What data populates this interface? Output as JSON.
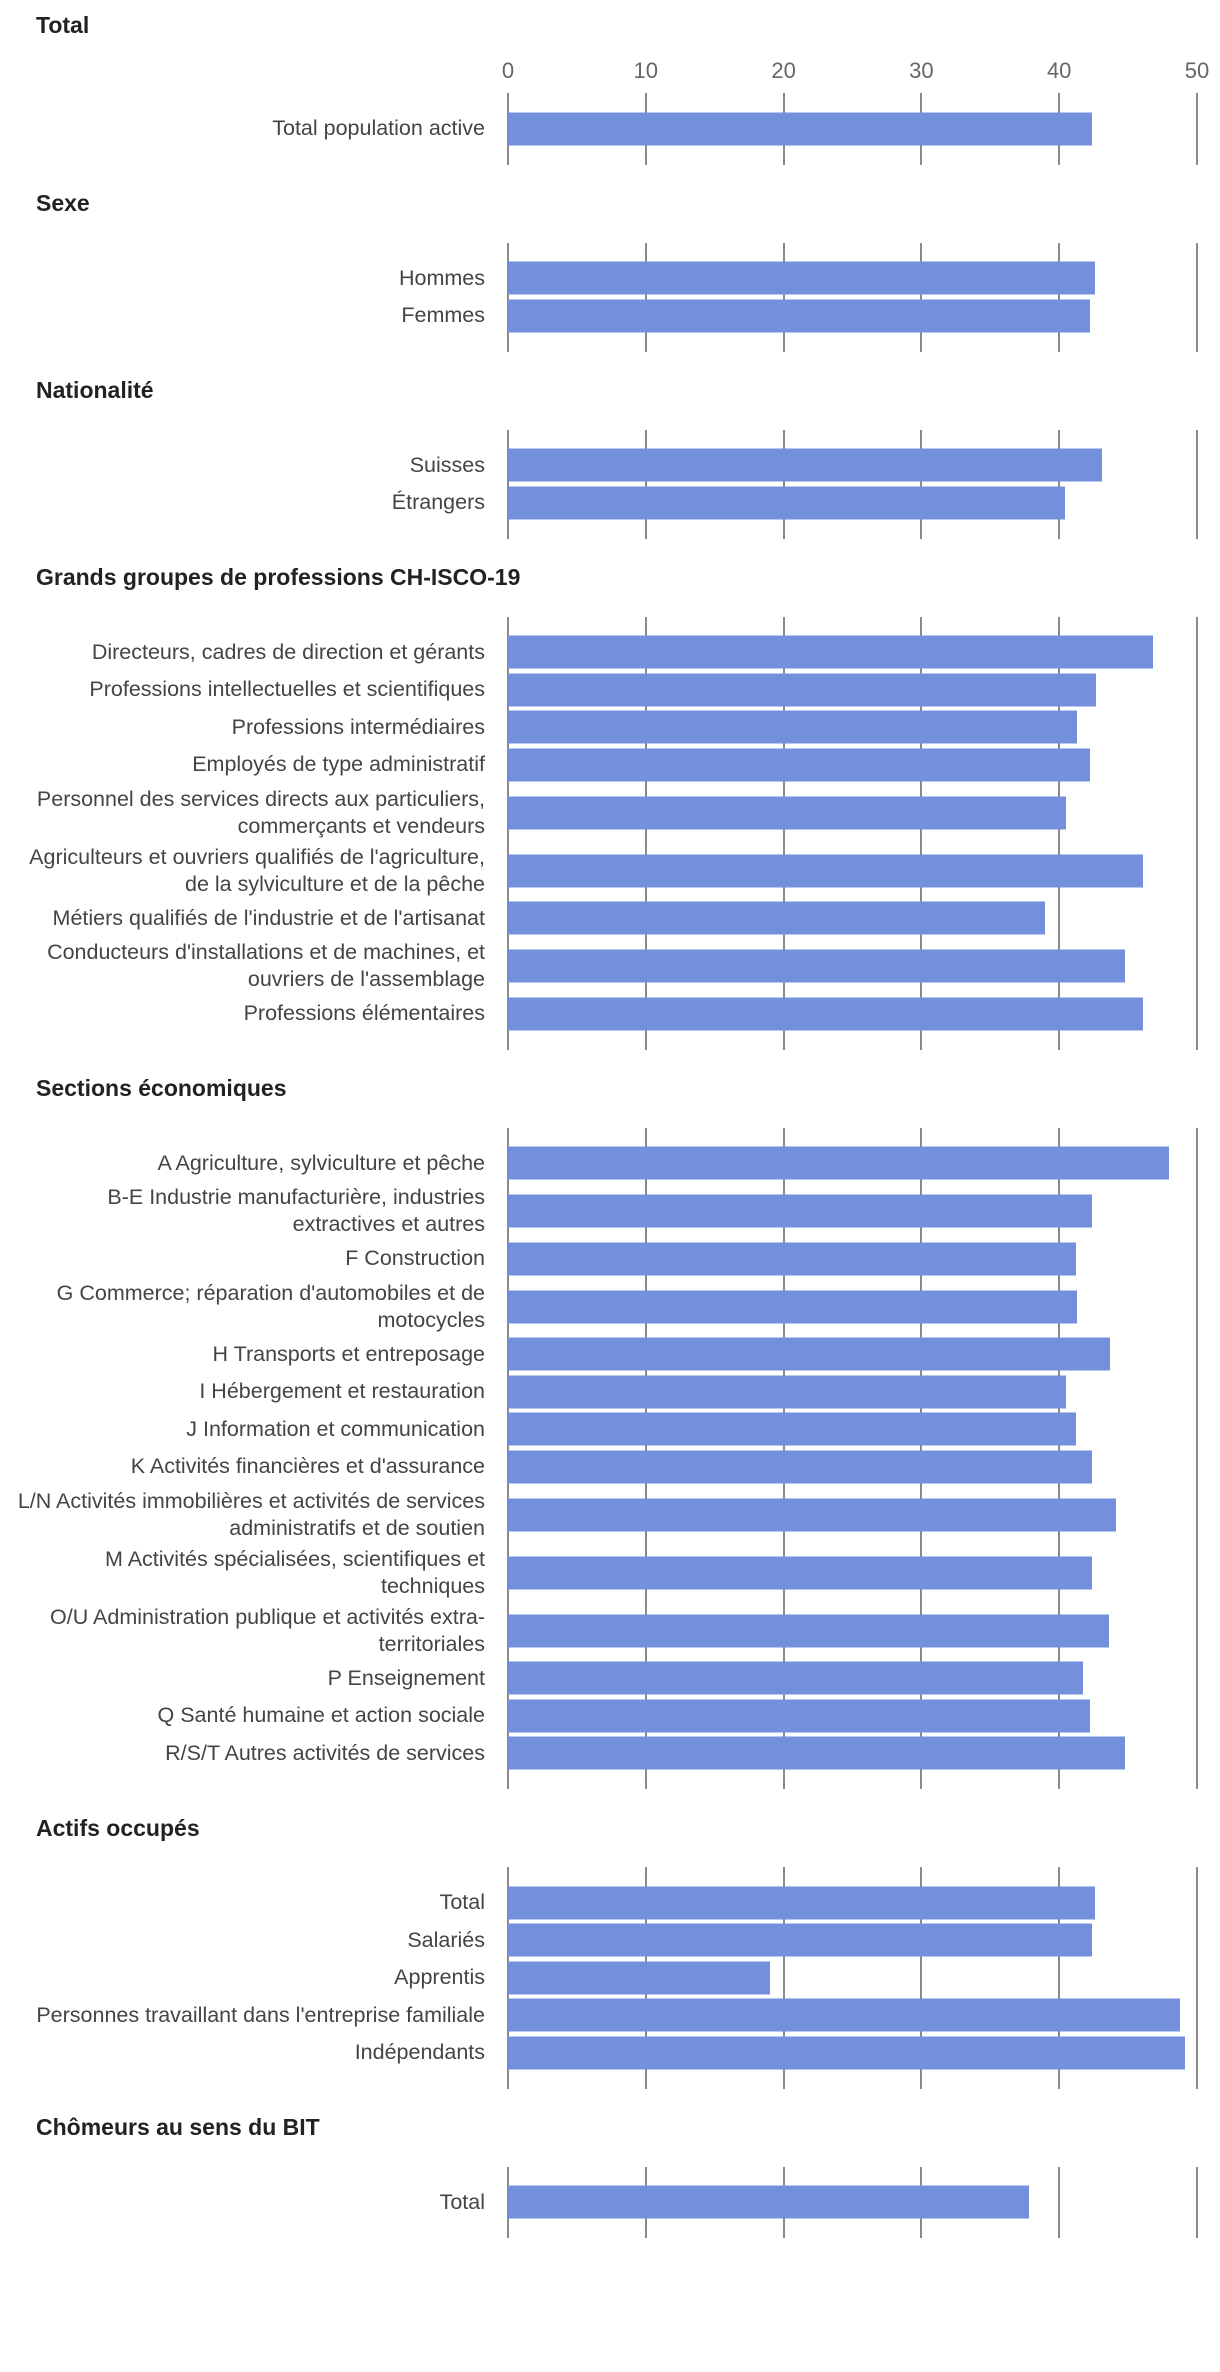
{
  "chart_data": [
    {
      "type": "bar",
      "title": "Total",
      "categories": [
        "Total population active"
      ],
      "values": [
        42.4
      ],
      "color": "#7490dc",
      "xlim": [
        0,
        50
      ],
      "xticks": [
        0,
        10,
        20,
        30,
        40,
        50
      ]
    },
    {
      "type": "bar",
      "title": "Sexe",
      "categories": [
        "Hommes",
        "Femmes"
      ],
      "values": [
        42.6,
        42.2
      ],
      "color": "#7490dc"
    },
    {
      "type": "bar",
      "title": "Nationalité",
      "categories": [
        "Suisses",
        "Étrangers"
      ],
      "values": [
        43.1,
        40.4
      ],
      "color": "#7490dc"
    },
    {
      "type": "bar",
      "title": "Grands groupes de professions CH-ISCO-19",
      "categories": [
        "Directeurs, cadres de direction et gérants",
        "Professions intellectuelles et scientifiques",
        "Professions intermédiaires",
        "Employés de type administratif",
        "Personnel des services directs aux particuliers, commerçants et vendeurs",
        "Agriculteurs et ouvriers qualifiés de l'agriculture, de la sylviculture et de la pêche",
        "Métiers qualifiés de l'industrie et de l'artisanat",
        "Conducteurs d'installations et de machines, et ouvriers de l'assemblage",
        "Professions élémentaires"
      ],
      "values": [
        46.8,
        42.7,
        41.3,
        42.2,
        40.5,
        46.1,
        39.0,
        44.8,
        46.1
      ],
      "color": "#7490dc"
    },
    {
      "type": "bar",
      "title": "Sections économiques",
      "categories": [
        "A Agriculture, sylviculture et pêche",
        "B-E Industrie manufacturière, industries extractives et autres",
        "F Construction",
        "G Commerce; réparation d'automobiles et de motocycles",
        "H Transports et entreposage",
        "I Hébergement et restauration",
        "J Information et communication",
        "K Activités financières et d'assurance",
        "L/N Activités immobilières et activités de services administratifs et de soutien",
        "M Activités spécialisées, scientifiques et techniques",
        "O/U Administration publique et activités extra-territoriales",
        "P Enseignement",
        "Q Santé humaine et action sociale",
        "R/S/T Autres activités de services"
      ],
      "values": [
        48.0,
        42.4,
        41.2,
        41.3,
        43.7,
        40.5,
        41.2,
        42.4,
        44.1,
        42.4,
        43.6,
        41.7,
        42.2,
        44.8
      ],
      "color": "#7490dc"
    },
    {
      "type": "bar",
      "title": "Actifs occupés",
      "categories": [
        "Total",
        "Salariés",
        "Apprentis",
        "Personnes travaillant dans l'entreprise familiale",
        "Indépendants"
      ],
      "values": [
        42.6,
        42.4,
        19.0,
        48.8,
        49.1
      ],
      "color": "#7490dc"
    },
    {
      "type": "bar",
      "title": "Chômeurs au sens du BIT",
      "categories": [
        "Total"
      ],
      "values": [
        37.8
      ],
      "color": "#7490dc"
    }
  ]
}
